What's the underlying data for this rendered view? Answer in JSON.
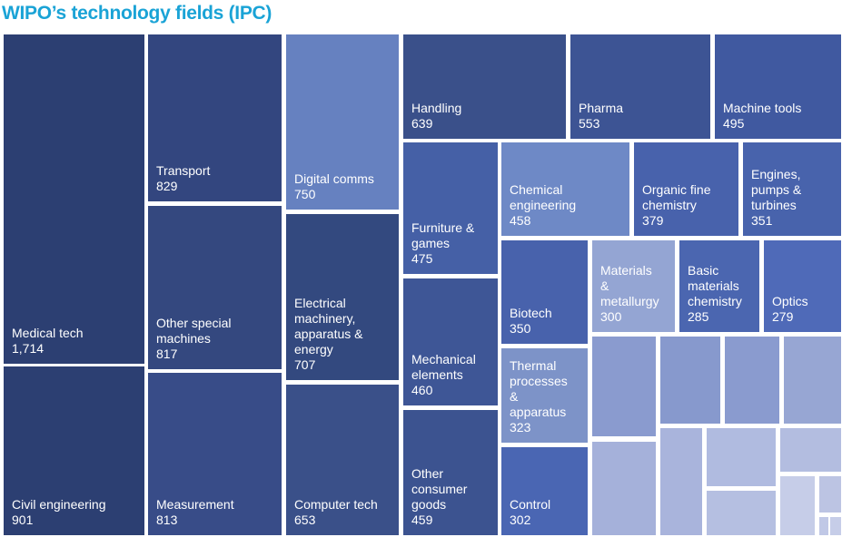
{
  "title": "WIPO’s technology fields (IPC)",
  "chart_data": {
    "type": "treemap",
    "title": "WIPO’s technology fields (IPC)",
    "items": [
      {
        "name": "Medical tech",
        "value": "1,714",
        "color": "#2c3f72"
      },
      {
        "name": "Civil engineering",
        "value": "901",
        "color": "#2c3f72"
      },
      {
        "name": "Transport",
        "value": "829",
        "color": "#33467f"
      },
      {
        "name": "Other special\nmachines",
        "value": "817",
        "color": "#34487f"
      },
      {
        "name": "Measurement",
        "value": "813",
        "color": "#384c88"
      },
      {
        "name": "Digital comms",
        "value": "750",
        "color": "#6681c0"
      },
      {
        "name": "Electrical\nmachinery,\napparatus &\nenergy",
        "value": "707",
        "color": "#33497f"
      },
      {
        "name": "Computer tech",
        "value": "653",
        "color": "#3a5089"
      },
      {
        "name": "Handling",
        "value": "639",
        "color": "#3a508a"
      },
      {
        "name": "Pharma",
        "value": "553",
        "color": "#3d5494"
      },
      {
        "name": "Machine tools",
        "value": "495",
        "color": "#4059a0"
      },
      {
        "name": "Furniture &\ngames",
        "value": "475",
        "color": "#4560a6"
      },
      {
        "name": "Mechanical\nelements",
        "value": "460",
        "color": "#3e5696"
      },
      {
        "name": "Other\nconsumer\ngoods",
        "value": "459",
        "color": "#3c5390"
      },
      {
        "name": "Chemical\nengineering",
        "value": "458",
        "color": "#6e89c6"
      },
      {
        "name": "Organic fine\nchemistry",
        "value": "379",
        "color": "#4862ac"
      },
      {
        "name": "Engines,\npumps &\nturbines",
        "value": "351",
        "color": "#4863ac"
      },
      {
        "name": "Biotech",
        "value": "350",
        "color": "#4862ac"
      },
      {
        "name": "Thermal\nprocesses\n&\napparatus",
        "value": "323",
        "color": "#7d93c8"
      },
      {
        "name": "Control",
        "value": "302",
        "color": "#4a66b3"
      },
      {
        "name": "Materials\n&\nmetallurgy",
        "value": "300",
        "color": "#94a5d3"
      },
      {
        "name": "Basic\nmaterials\nchemistry",
        "value": "285",
        "color": "#4b66b0"
      },
      {
        "name": "Optics",
        "value": "279",
        "color": "#4f6ab8"
      }
    ],
    "unlabeled_tiles": 15,
    "unlabeled_colors": [
      "#8a9bcf",
      "#8799cd",
      "#8a9bcf",
      "#97a6d3",
      "#a5b1da",
      "#a9b4dc",
      "#b0bbe0",
      "#b5bfe1",
      "#b3bde0",
      "#c6cde8",
      "#bcc4e3",
      "#c0c8e6",
      "#c6cde8",
      "#c8cfe8",
      "#c8cfe8"
    ]
  }
}
